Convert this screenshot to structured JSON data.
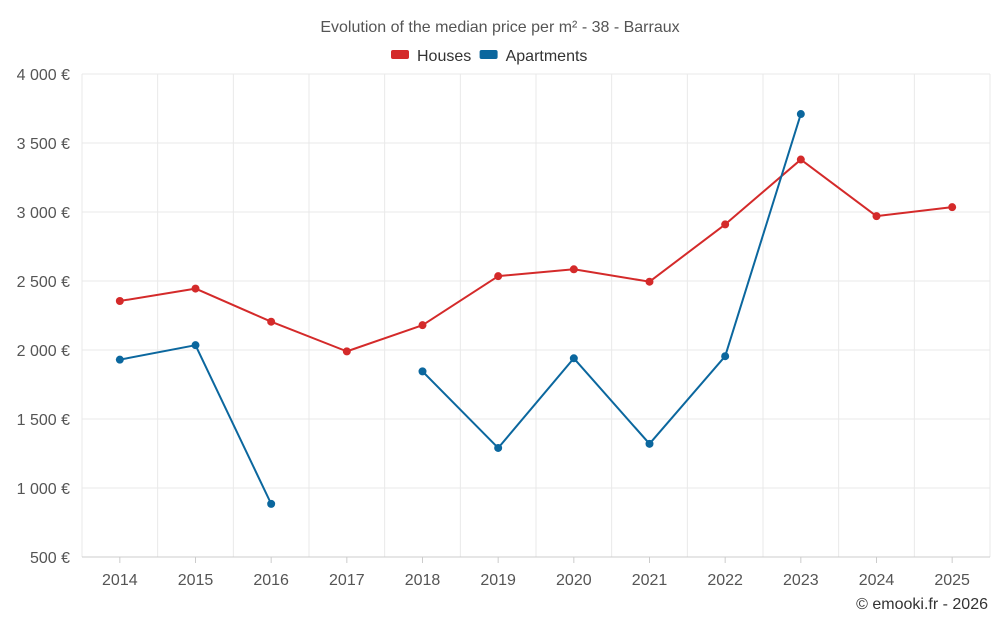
{
  "chart_data": {
    "type": "line",
    "title": "Evolution of the median price per m² - 38 - Barraux",
    "categories": [
      "2014",
      "2015",
      "2016",
      "2017",
      "2018",
      "2019",
      "2020",
      "2021",
      "2022",
      "2023",
      "2024",
      "2025"
    ],
    "y_ticks": [
      500,
      1000,
      1500,
      2000,
      2500,
      3000,
      3500,
      4000
    ],
    "y_tick_labels": [
      "500 €",
      "1 000 €",
      "1 500 €",
      "2 000 €",
      "2 500 €",
      "3 000 €",
      "3 500 €",
      "4 000 €"
    ],
    "ylim": [
      500,
      4000
    ],
    "xlabel": "",
    "ylabel": "",
    "grid": true,
    "legend_position": "top-center",
    "series": [
      {
        "name": "Houses",
        "color": "#d42a2a",
        "values": [
          2355,
          2445,
          2205,
          1990,
          2180,
          2535,
          2585,
          2495,
          2910,
          3380,
          2970,
          3035
        ]
      },
      {
        "name": "Apartments",
        "color": "#0b679e",
        "values": [
          1930,
          2035,
          885,
          null,
          1845,
          1290,
          1940,
          1320,
          1955,
          3710,
          null,
          null
        ]
      }
    ],
    "credit": "© emooki.fr - 2026"
  }
}
